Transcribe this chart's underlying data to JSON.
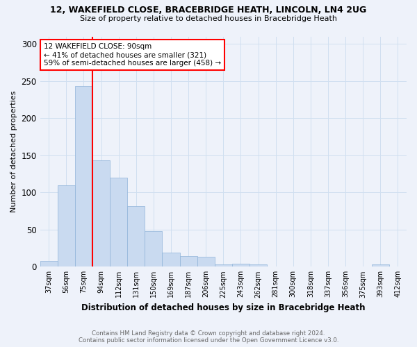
{
  "title1": "12, WAKEFIELD CLOSE, BRACEBRIDGE HEATH, LINCOLN, LN4 2UG",
  "title2": "Size of property relative to detached houses in Bracebridge Heath",
  "xlabel": "Distribution of detached houses by size in Bracebridge Heath",
  "ylabel": "Number of detached properties",
  "footer1": "Contains HM Land Registry data © Crown copyright and database right 2024.",
  "footer2": "Contains public sector information licensed under the Open Government Licence v3.0.",
  "bar_labels": [
    "37sqm",
    "56sqm",
    "75sqm",
    "94sqm",
    "112sqm",
    "131sqm",
    "150sqm",
    "169sqm",
    "187sqm",
    "206sqm",
    "225sqm",
    "243sqm",
    "262sqm",
    "281sqm",
    "300sqm",
    "318sqm",
    "337sqm",
    "356sqm",
    "375sqm",
    "393sqm",
    "412sqm"
  ],
  "bar_values": [
    8,
    110,
    243,
    143,
    120,
    82,
    48,
    19,
    14,
    13,
    3,
    4,
    3,
    0,
    0,
    0,
    0,
    0,
    0,
    3,
    0
  ],
  "bar_color": "#c9daf0",
  "bar_edge_color": "#8fb4d9",
  "grid_color": "#d0dff0",
  "vline_index": 2.5,
  "annotation_text": "12 WAKEFIELD CLOSE: 90sqm\n← 41% of detached houses are smaller (321)\n59% of semi-detached houses are larger (458) →",
  "annotation_box_color": "white",
  "annotation_border_color": "red",
  "vline_color": "red",
  "ylim": [
    0,
    310
  ],
  "yticks": [
    0,
    50,
    100,
    150,
    200,
    250,
    300
  ],
  "bg_color": "#eef2fa",
  "fig_width": 6.0,
  "fig_height": 5.0,
  "dpi": 100
}
